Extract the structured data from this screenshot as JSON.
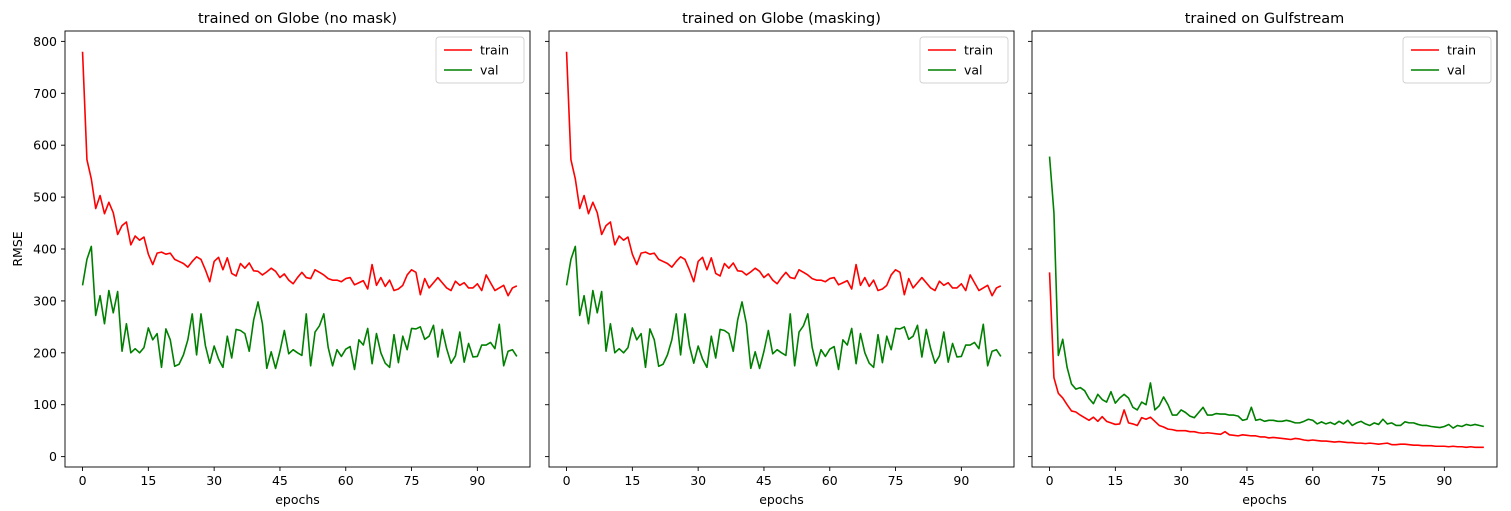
{
  "chart_data": [
    {
      "type": "line",
      "title": "trained on Globe (no mask)",
      "xlabel": "epochs",
      "ylabel": "RMSE",
      "xlim": [
        -4,
        102
      ],
      "ylim": [
        -20,
        820
      ],
      "xticks": [
        0,
        15,
        30,
        45,
        60,
        75,
        90
      ],
      "yticks": [
        0,
        100,
        200,
        300,
        400,
        500,
        600,
        700,
        800
      ],
      "legend": "top-right",
      "grid": false,
      "series": [
        {
          "name": "train",
          "color": "#ff0000",
          "values": [
            780,
            572,
            535,
            478,
            503,
            468,
            490,
            470,
            428,
            445,
            452,
            408,
            425,
            417,
            423,
            390,
            370,
            392,
            394,
            390,
            392,
            380,
            376,
            372,
            365,
            376,
            385,
            380,
            360,
            337,
            376,
            384,
            360,
            383,
            353,
            348,
            372,
            363,
            373,
            358,
            357,
            350,
            356,
            363,
            357,
            345,
            352,
            340,
            333,
            345,
            355,
            345,
            343,
            360,
            355,
            350,
            343,
            340,
            340,
            337,
            343,
            345,
            331,
            335,
            339,
            323,
            370,
            330,
            345,
            328,
            340,
            320,
            323,
            330,
            350,
            360,
            355,
            312,
            343,
            325,
            335,
            345,
            335,
            325,
            320,
            338,
            330,
            335,
            325,
            325,
            333,
            320,
            350,
            335,
            320,
            325,
            330,
            310,
            325,
            329
          ]
        },
        {
          "name": "val",
          "color": "#008000",
          "values": [
            330,
            380,
            405,
            272,
            310,
            256,
            320,
            277,
            318,
            203,
            256,
            200,
            208,
            200,
            210,
            248,
            225,
            237,
            172,
            246,
            225,
            174,
            178,
            196,
            225,
            275,
            196,
            275,
            214,
            180,
            213,
            188,
            172,
            232,
            190,
            245,
            243,
            237,
            203,
            263,
            298,
            256,
            170,
            202,
            170,
            203,
            243,
            198,
            206,
            200,
            195,
            275,
            175,
            240,
            252,
            275,
            210,
            175,
            206,
            193,
            207,
            212,
            168,
            225,
            215,
            247,
            179,
            237,
            200,
            180,
            172,
            235,
            181,
            232,
            206,
            247,
            246,
            250,
            226,
            232,
            253,
            192,
            245,
            208,
            180,
            194,
            240,
            182,
            218,
            192,
            193,
            215,
            215,
            220,
            208,
            255,
            175,
            203,
            206,
            193
          ]
        }
      ]
    },
    {
      "type": "line",
      "title": "trained on Globe (masking)",
      "xlabel": "epochs",
      "ylabel": "",
      "xlim": [
        -4,
        102
      ],
      "ylim": [
        -20,
        820
      ],
      "xticks": [
        0,
        15,
        30,
        45,
        60,
        75,
        90
      ],
      "yticks": [
        0,
        100,
        200,
        300,
        400,
        500,
        600,
        700,
        800
      ],
      "legend": "top-right",
      "grid": false,
      "series": [
        {
          "name": "train",
          "color": "#ff0000",
          "values": [
            780,
            572,
            535,
            478,
            503,
            468,
            490,
            470,
            428,
            445,
            452,
            408,
            425,
            417,
            423,
            390,
            370,
            392,
            394,
            390,
            392,
            380,
            376,
            372,
            365,
            376,
            385,
            380,
            360,
            337,
            376,
            384,
            360,
            383,
            353,
            348,
            372,
            363,
            373,
            358,
            357,
            350,
            356,
            363,
            357,
            345,
            352,
            340,
            333,
            345,
            355,
            345,
            343,
            360,
            355,
            350,
            343,
            340,
            340,
            337,
            343,
            345,
            331,
            335,
            339,
            323,
            370,
            330,
            345,
            328,
            340,
            320,
            323,
            330,
            350,
            360,
            355,
            312,
            343,
            325,
            335,
            345,
            335,
            325,
            320,
            338,
            330,
            335,
            325,
            325,
            333,
            320,
            350,
            335,
            320,
            325,
            330,
            310,
            325,
            329
          ]
        },
        {
          "name": "val",
          "color": "#008000",
          "values": [
            330,
            380,
            405,
            272,
            310,
            256,
            320,
            277,
            318,
            203,
            256,
            200,
            208,
            200,
            210,
            248,
            225,
            237,
            172,
            246,
            225,
            174,
            178,
            196,
            225,
            275,
            196,
            275,
            214,
            180,
            213,
            188,
            172,
            232,
            190,
            245,
            243,
            237,
            203,
            263,
            298,
            256,
            170,
            202,
            170,
            203,
            243,
            198,
            206,
            200,
            195,
            275,
            175,
            240,
            252,
            275,
            210,
            175,
            206,
            193,
            207,
            212,
            168,
            225,
            215,
            247,
            179,
            237,
            200,
            180,
            172,
            235,
            181,
            232,
            206,
            247,
            246,
            250,
            226,
            232,
            253,
            192,
            245,
            208,
            180,
            194,
            240,
            182,
            218,
            192,
            193,
            215,
            215,
            220,
            208,
            255,
            175,
            203,
            206,
            193
          ]
        }
      ]
    },
    {
      "type": "line",
      "title": "trained on Gulfstream",
      "xlabel": "epochs",
      "ylabel": "",
      "xlim": [
        -4,
        102
      ],
      "ylim": [
        -20,
        820
      ],
      "xticks": [
        0,
        15,
        30,
        45,
        60,
        75,
        90
      ],
      "yticks": [
        0,
        100,
        200,
        300,
        400,
        500,
        600,
        700,
        800
      ],
      "legend": "top-right",
      "grid": false,
      "series": [
        {
          "name": "train",
          "color": "#ff0000",
          "values": [
            355,
            152,
            122,
            113,
            100,
            88,
            86,
            80,
            75,
            70,
            76,
            68,
            77,
            68,
            65,
            62,
            63,
            90,
            65,
            63,
            60,
            75,
            72,
            76,
            68,
            60,
            57,
            53,
            52,
            50,
            50,
            50,
            48,
            48,
            46,
            45,
            46,
            45,
            44,
            43,
            48,
            42,
            41,
            40,
            42,
            41,
            40,
            40,
            38,
            38,
            36,
            37,
            36,
            35,
            34,
            33,
            35,
            34,
            32,
            31,
            32,
            31,
            30,
            30,
            29,
            28,
            29,
            28,
            27,
            27,
            26,
            26,
            25,
            26,
            25,
            24,
            25,
            26,
            23,
            23,
            24,
            24,
            23,
            22,
            22,
            21,
            21,
            21,
            20,
            20,
            20,
            19,
            20,
            19,
            19,
            18,
            19,
            18,
            18,
            18
          ]
        },
        {
          "name": "val",
          "color": "#008000",
          "values": [
            578,
            470,
            195,
            226,
            172,
            140,
            130,
            133,
            127,
            112,
            102,
            120,
            110,
            105,
            125,
            103,
            113,
            120,
            113,
            95,
            90,
            105,
            100,
            142,
            90,
            98,
            115,
            100,
            80,
            80,
            90,
            85,
            78,
            75,
            85,
            95,
            80,
            80,
            83,
            82,
            82,
            80,
            80,
            78,
            70,
            72,
            95,
            70,
            72,
            68,
            70,
            70,
            68,
            68,
            70,
            68,
            65,
            65,
            68,
            72,
            70,
            63,
            67,
            63,
            66,
            62,
            68,
            63,
            70,
            60,
            65,
            68,
            63,
            60,
            65,
            62,
            72,
            63,
            65,
            60,
            60,
            67,
            65,
            65,
            62,
            60,
            60,
            58,
            57,
            56,
            58,
            62,
            55,
            60,
            58,
            62,
            60,
            62,
            60,
            58
          ]
        }
      ]
    }
  ]
}
